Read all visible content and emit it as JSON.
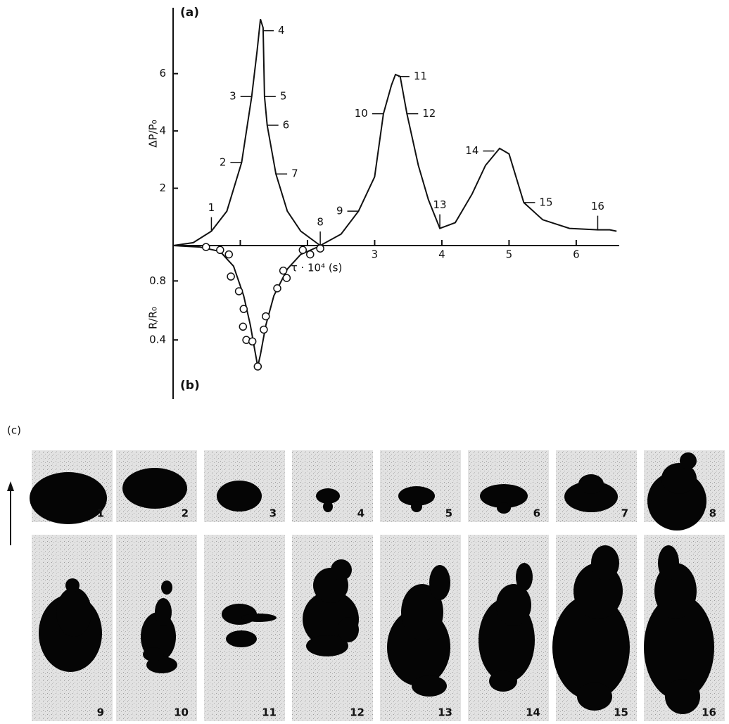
{
  "chart_data": [
    {
      "type": "line",
      "panel_label": "(a)",
      "ylabel": "ΔP/P₀",
      "xlabel": "τ · 10⁴ (s)",
      "x": [
        0,
        0.3,
        0.57,
        0.8,
        1.02,
        1.17,
        1.25,
        1.3,
        1.34,
        1.36,
        1.4,
        1.53,
        1.7,
        1.9,
        2.19,
        2.5,
        2.76,
        3.0,
        3.13,
        3.25,
        3.31,
        3.38,
        3.48,
        3.65,
        3.8,
        3.97,
        4.2,
        4.45,
        4.65,
        4.86,
        5.0,
        5.22,
        5.5,
        5.9,
        6.32,
        6.5,
        6.6
      ],
      "values": [
        0,
        0.1,
        0.5,
        1.2,
        2.9,
        5.2,
        6.8,
        7.9,
        7.6,
        5.2,
        4.2,
        2.5,
        1.2,
        0.5,
        0,
        0.4,
        1.2,
        2.4,
        4.6,
        5.6,
        5.97,
        5.9,
        4.6,
        2.8,
        1.6,
        0.6,
        0.8,
        1.8,
        2.8,
        3.39,
        3.2,
        1.5,
        0.9,
        0.6,
        0.55,
        0.55,
        0.5
      ],
      "xlim": [
        0,
        6.64
      ],
      "ylim": [
        0,
        8.3
      ],
      "xticks": [
        {
          "value": 1,
          "label": null
        },
        {
          "value": 2,
          "label": null
        },
        3,
        4,
        5,
        6
      ],
      "yticks": [
        2,
        4,
        6
      ],
      "annotations": [
        {
          "text": "1",
          "x": 0.57,
          "y": 0.5
        },
        {
          "text": "2",
          "x": 1.02,
          "y": 2.9
        },
        {
          "text": "3",
          "x": 1.17,
          "y": 5.2
        },
        {
          "text": "4",
          "x": 1.33,
          "y": 7.5
        },
        {
          "text": "5",
          "x": 1.36,
          "y": 5.2
        },
        {
          "text": "6",
          "x": 1.4,
          "y": 4.2
        },
        {
          "text": "7",
          "x": 1.53,
          "y": 2.5
        },
        {
          "text": "8",
          "x": 2.19,
          "y": 0
        },
        {
          "text": "9",
          "x": 2.76,
          "y": 1.2
        },
        {
          "text": "10",
          "x": 3.13,
          "y": 4.6
        },
        {
          "text": "11",
          "x": 3.35,
          "y": 5.9
        },
        {
          "text": "12",
          "x": 3.48,
          "y": 4.6
        },
        {
          "text": "13",
          "x": 3.97,
          "y": 0.6
        },
        {
          "text": "14",
          "x": 4.78,
          "y": 3.3
        },
        {
          "text": "15",
          "x": 5.22,
          "y": 1.5
        },
        {
          "text": "16",
          "x": 6.32,
          "y": 0.55
        }
      ]
    },
    {
      "type": "line",
      "panel_label": "(b)",
      "ylabel": "R/R₀",
      "x": [
        0,
        0.4,
        0.7,
        0.9,
        1.05,
        1.15,
        1.22,
        1.26,
        1.3,
        1.38,
        1.5,
        1.7,
        1.9,
        2.2
      ],
      "values": [
        1.04,
        1.03,
        1.0,
        0.9,
        0.7,
        0.5,
        0.32,
        0.22,
        0.3,
        0.5,
        0.7,
        0.88,
        0.98,
        1.04
      ],
      "points": {
        "x": [
          0.49,
          0.7,
          0.83,
          0.86,
          0.98,
          1.05,
          1.04,
          1.09,
          1.18,
          1.26,
          1.35,
          1.38,
          1.55,
          1.64,
          1.69,
          1.93,
          2.04,
          2.19
        ],
        "values": [
          1.03,
          1.01,
          0.98,
          0.83,
          0.73,
          0.61,
          0.49,
          0.4,
          0.39,
          0.22,
          0.47,
          0.56,
          0.75,
          0.87,
          0.82,
          1.01,
          0.98,
          1.02
        ]
      },
      "xlim": [
        0,
        6.64
      ],
      "ylim": [
        0,
        1.04
      ],
      "yticks": [
        0.4,
        0.8
      ]
    }
  ],
  "photos": {
    "panel_label": "(c)",
    "frames": [
      "1",
      "2",
      "3",
      "4",
      "5",
      "6",
      "7",
      "8",
      "9",
      "10",
      "11",
      "12",
      "13",
      "14",
      "15",
      "16"
    ]
  }
}
